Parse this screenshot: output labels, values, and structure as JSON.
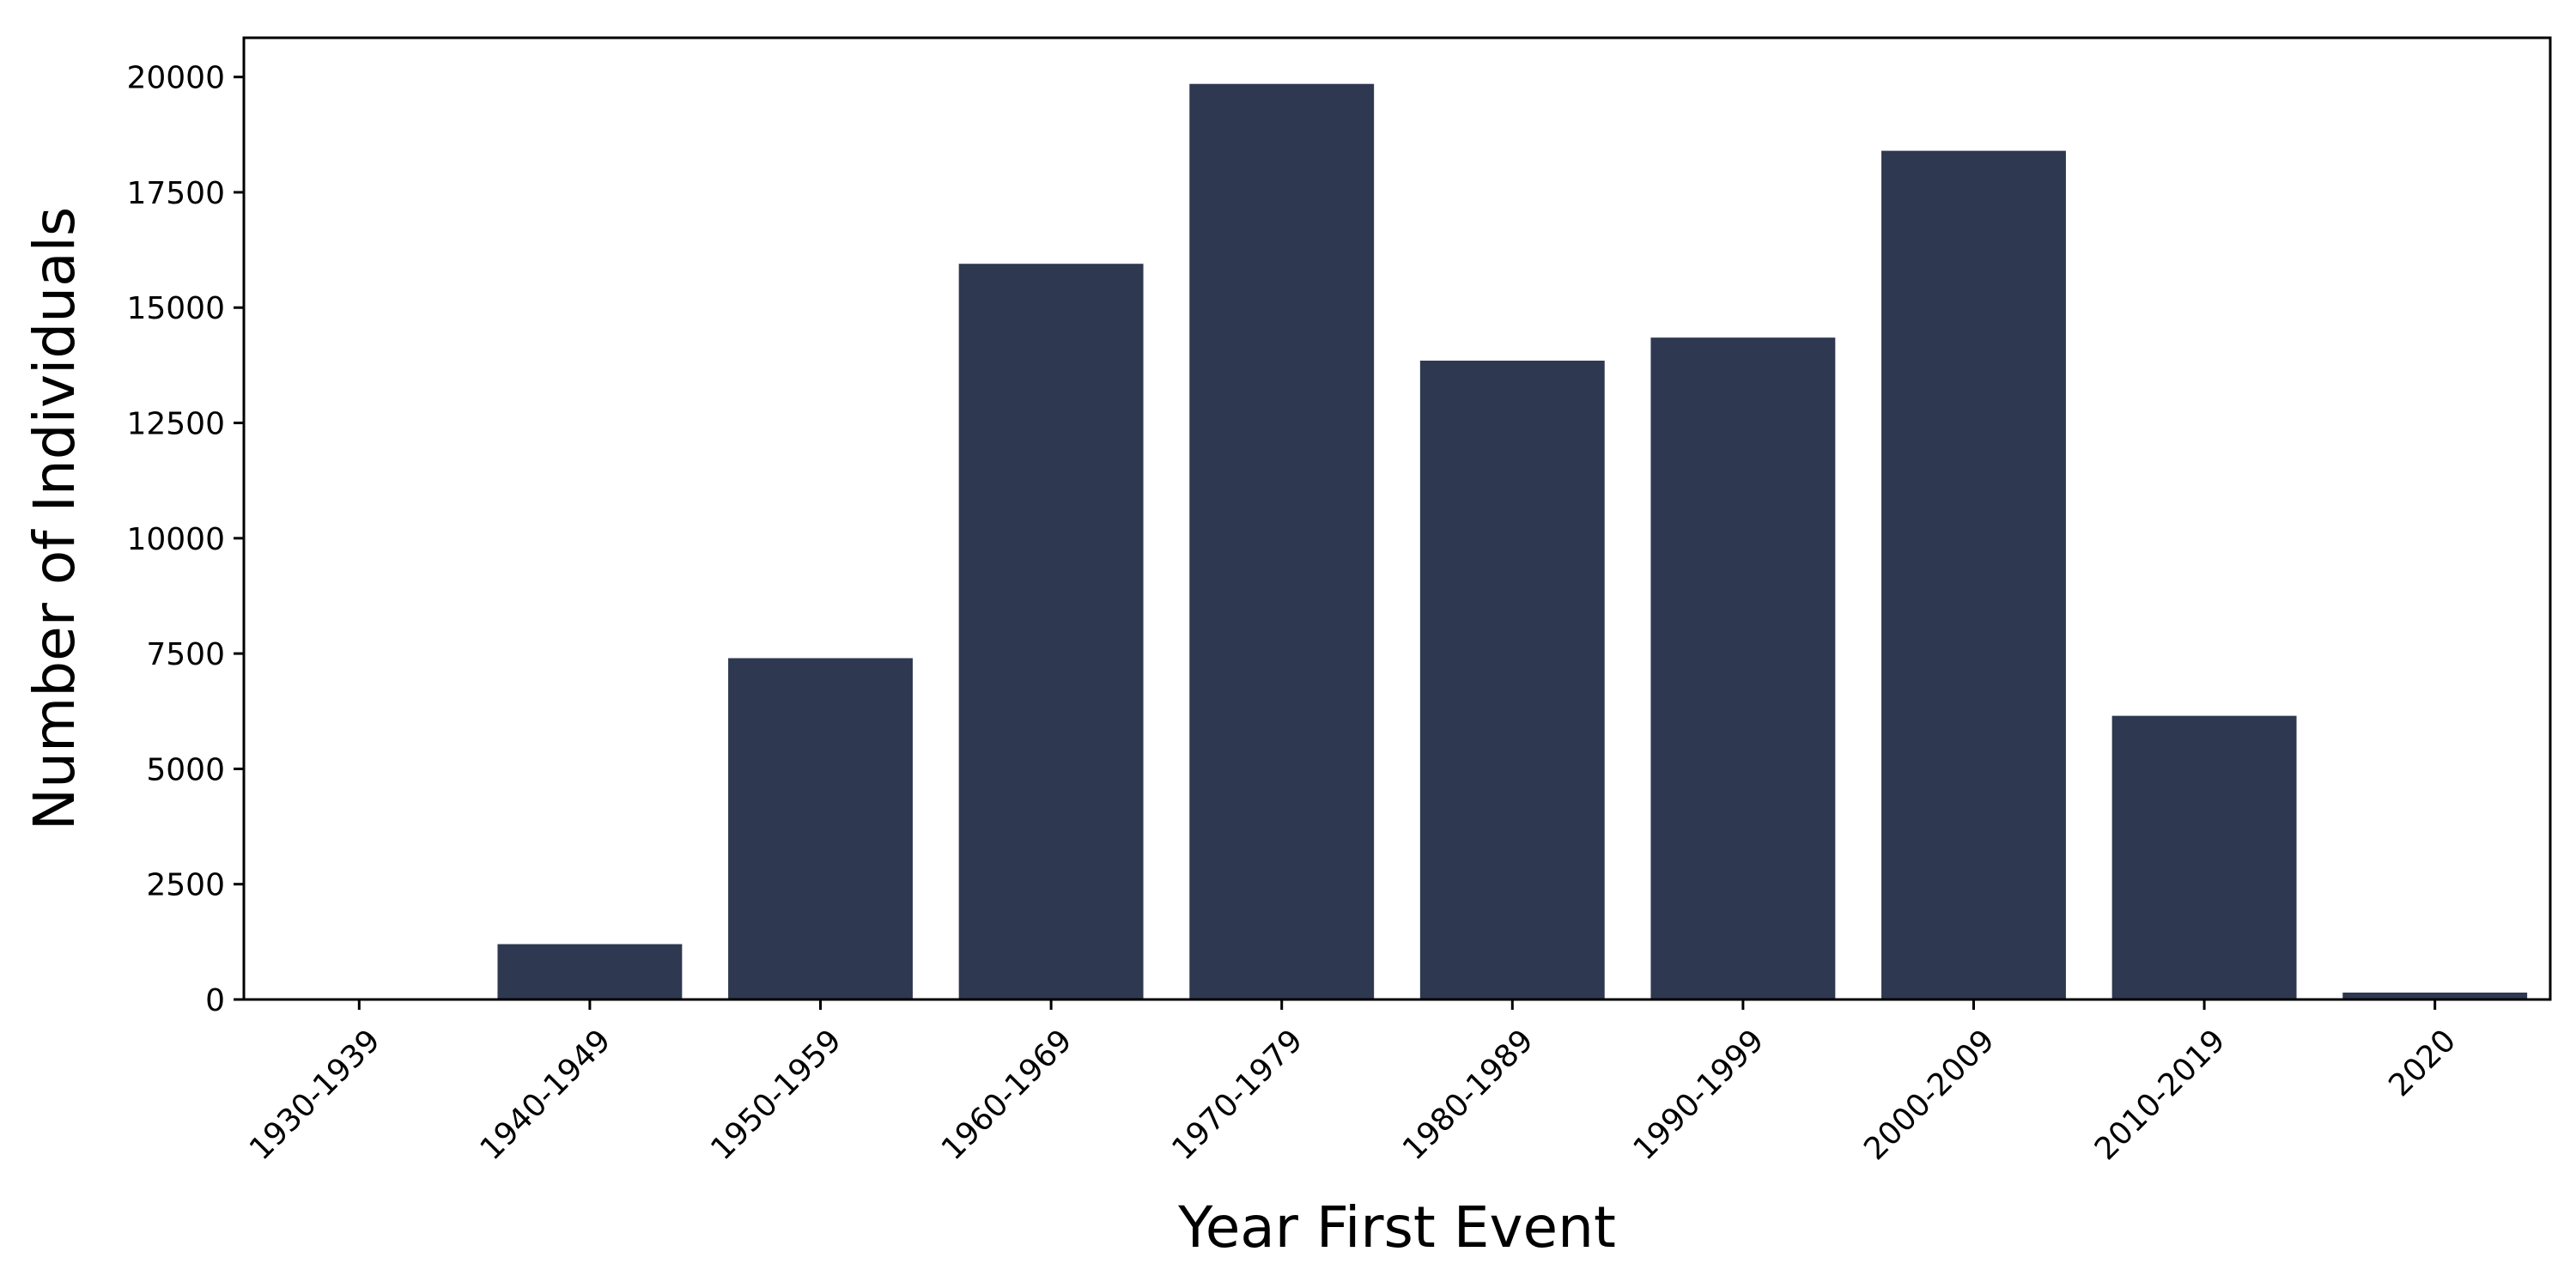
{
  "chart_data": {
    "type": "bar",
    "title": "",
    "xlabel": "Year First Event",
    "ylabel": "Number of Individuals",
    "categories": [
      "1930-1939",
      "1940-1949",
      "1950-1959",
      "1960-1969",
      "1970-1979",
      "1980-1989",
      "1990-1999",
      "2000-2009",
      "2010-2019",
      "2020"
    ],
    "values": [
      8,
      1200,
      7400,
      15950,
      19850,
      13850,
      14350,
      18400,
      6150,
      150
    ],
    "yticks": [
      0,
      2500,
      5000,
      7500,
      10000,
      12500,
      15000,
      17500,
      20000
    ],
    "ylim": [
      0,
      20850
    ],
    "grid": false,
    "legend": "none",
    "bar_color": "#2e3850"
  }
}
